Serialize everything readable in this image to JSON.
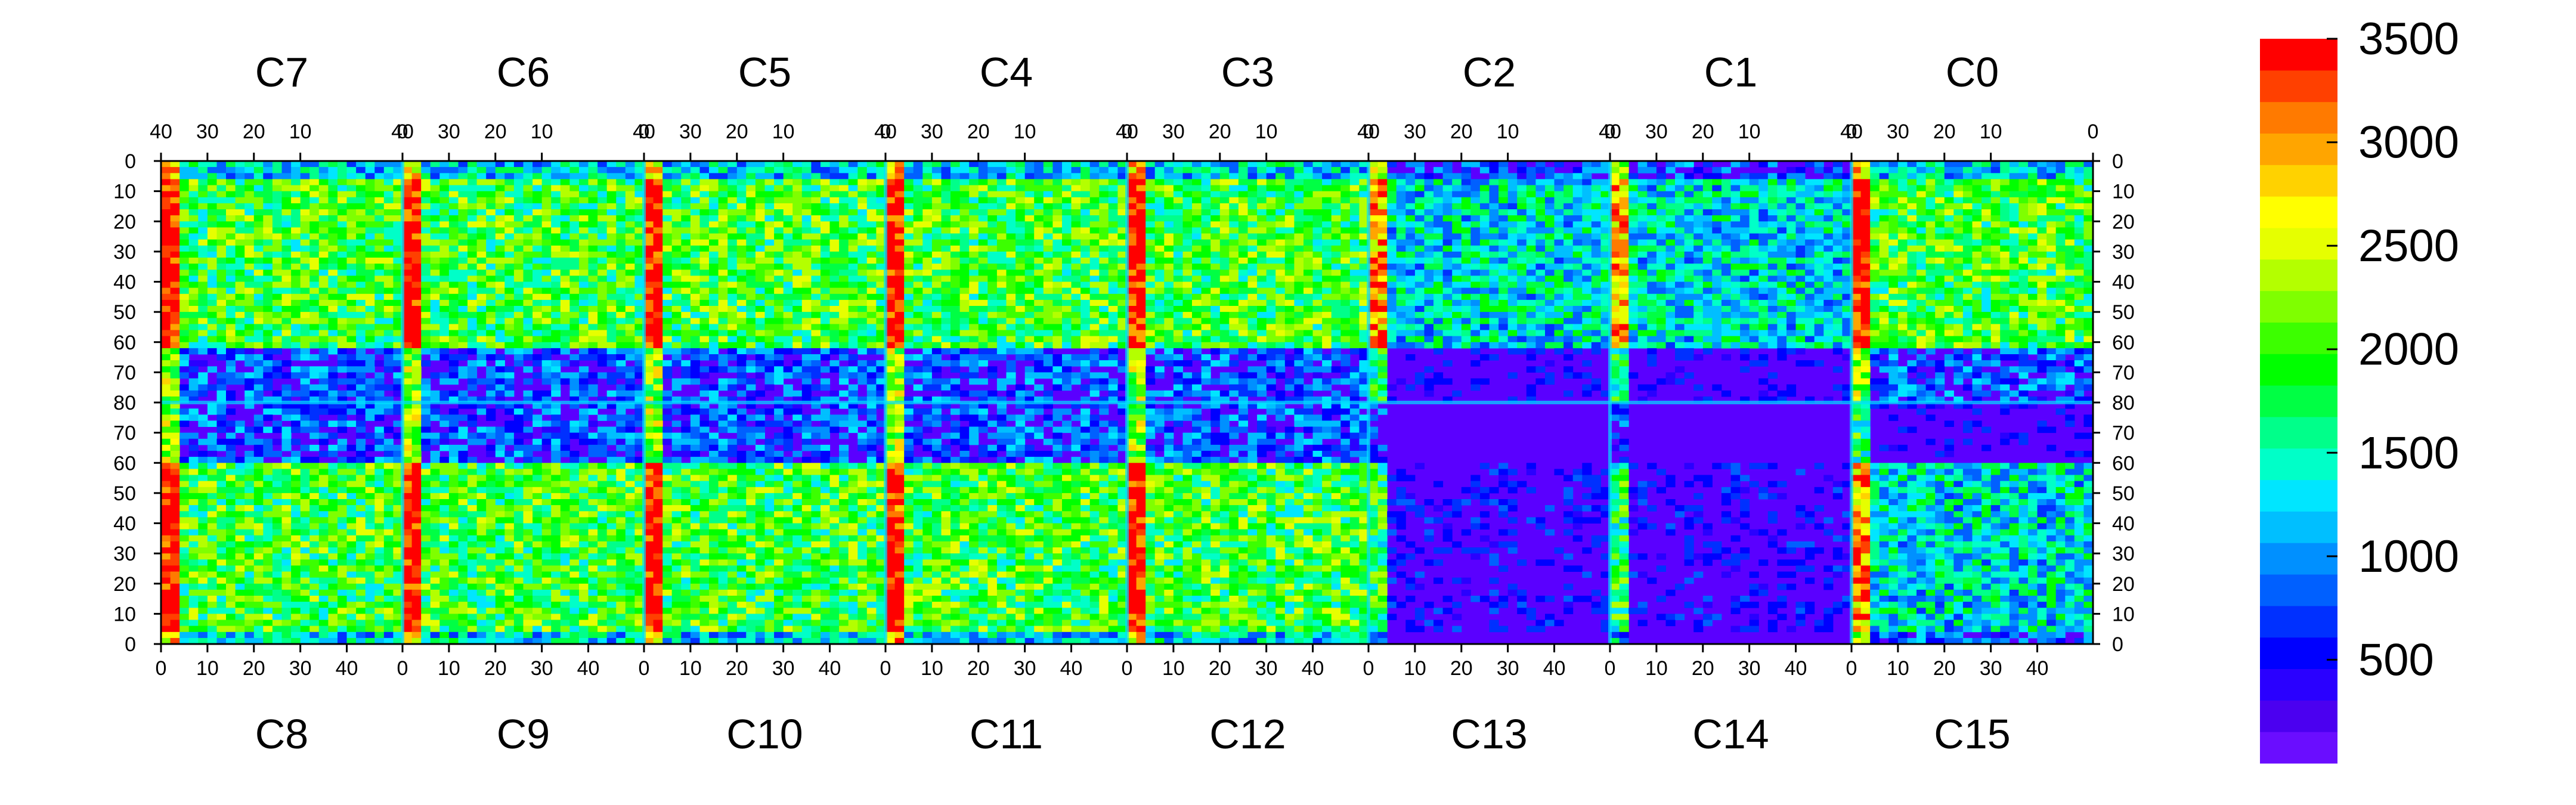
{
  "chart_data": {
    "type": "heatmap",
    "title": "",
    "top_chips": [
      "C7",
      "C6",
      "C5",
      "C4",
      "C3",
      "C2",
      "C1",
      "C0"
    ],
    "bottom_chips": [
      "C8",
      "C9",
      "C10",
      "C11",
      "C12",
      "C13",
      "C14",
      "C15"
    ],
    "top_x_ticks": [
      "40",
      "30",
      "20",
      "10",
      "0"
    ],
    "bottom_x_ticks": [
      "0",
      "10",
      "20",
      "30",
      "40"
    ],
    "y_ticks": [
      "0",
      "10",
      "20",
      "30",
      "40",
      "50",
      "60",
      "70",
      "80",
      "70",
      "60",
      "50",
      "40",
      "30",
      "20",
      "10",
      "0"
    ],
    "chip_columns": 52,
    "rows_per_half": 80,
    "colorbar": {
      "min": 0,
      "max": 3500,
      "ticks": [
        "500",
        "1000",
        "1500",
        "2000",
        "2500",
        "3000",
        "3500"
      ],
      "colors": [
        "#6a0dff",
        "#4b00f0",
        "#2a00ff",
        "#0000ff",
        "#0030ff",
        "#0060ff",
        "#0090ff",
        "#00bfff",
        "#00e6ff",
        "#00ffc8",
        "#00ff8a",
        "#00ff44",
        "#00ff00",
        "#3cff00",
        "#7fff00",
        "#b4ff00",
        "#e6ff00",
        "#ffff00",
        "#ffd200",
        "#ffa500",
        "#ff7a00",
        "#ff4000",
        "#ff0000"
      ]
    },
    "chip_levels": {
      "C0": "high",
      "C1": "medium",
      "C2": "medium",
      "C3": "high",
      "C4": "high",
      "C5": "high",
      "C6": "high",
      "C7": "high",
      "C8": "high",
      "C9": "high",
      "C10": "high",
      "C11": "high",
      "C12": "high",
      "C13": "low",
      "C14": "low",
      "C15": "medium"
    }
  }
}
